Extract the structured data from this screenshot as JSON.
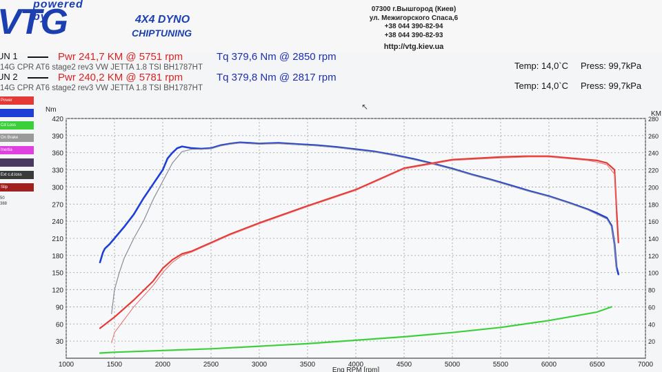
{
  "header": {
    "logo_top": "powered by",
    "logo_main": "VTG",
    "tagline1": "4X4 DYNO",
    "tagline2": "CHIPTUNING",
    "address": [
      "07300 г.Вышгород (Киев)",
      "ул. Межигорского Спаса,6",
      "+38 044 390-82-94",
      "+38 044 390-82-93"
    ],
    "url": "http://vtg.kiev.ua"
  },
  "runs": [
    {
      "label": "UN 1",
      "pwr": "Pwr  241,7 KM @ 5751 rpm",
      "tq": "Tq  379,6 Nm @ 2850 rpm",
      "desc": "14G CPR  AT6  stage2 rev3 VW JETTA 1.8 TSI BH1787HT",
      "temp": "Temp:  14,0`C",
      "press": "Press:  99,7kPa"
    },
    {
      "label": "UN 2",
      "pwr": "Pwr  240,2 KM @ 5781 rpm",
      "tq": "Tq  379,8 Nm @ 2817 rpm",
      "desc": "14G CPR  AT6  stage2 rev3 VW JETTA 1.8 TSI BH1787HT",
      "temp": "Temp:  14,0`C",
      "press": "Press:  99,7kPa"
    }
  ],
  "legend": [
    {
      "label": "Power",
      "color": "#e53935"
    },
    {
      "label": "",
      "color": "#1e3ed6"
    },
    {
      "label": "Cd Loss",
      "color": "#3ccf3c"
    },
    {
      "label": "On Brake",
      "color": "#9a9a9a"
    },
    {
      "label": "Inertia",
      "color": "#e040e0"
    },
    {
      "label": "",
      "color": "#4a3860"
    },
    {
      "label": "Ext c.d.loss",
      "color": "#3a3a3a"
    },
    {
      "label": "Slip",
      "color": "#a02020"
    }
  ],
  "legend_extra": [
    "50",
    "388"
  ],
  "chart_data": {
    "type": "line",
    "xlabel": "Eng RPM [rpm]",
    "ylabel_left": "Nm",
    "ylabel_right": "KM",
    "xlim": [
      1000,
      7000
    ],
    "ylim_left": [
      0,
      420
    ],
    "ylim_right": [
      0,
      280
    ],
    "x_ticks": [
      1000,
      1500,
      2000,
      2500,
      3000,
      3500,
      4000,
      4500,
      5000,
      5500,
      6000,
      6500,
      7000
    ],
    "y_left_ticks": [
      30,
      60,
      90,
      120,
      150,
      180,
      210,
      240,
      270,
      300,
      330,
      360,
      390,
      420
    ],
    "y_right_ticks": [
      20,
      40,
      60,
      80,
      100,
      120,
      140,
      160,
      180,
      200,
      220,
      240,
      260,
      280
    ],
    "grid": true,
    "series": [
      {
        "color": "#1e3ed6",
        "axis": "left",
        "width": 2.6,
        "x": [
          1350,
          1380,
          1400,
          1450,
          1500,
          1600,
          1700,
          1800,
          1900,
          2000,
          2050,
          2100,
          2150,
          2200,
          2300,
          2400,
          2500,
          2600,
          2700,
          2800,
          2900,
          3000,
          3200,
          3400,
          3600,
          3800,
          4000,
          4200,
          4400,
          4600,
          4800,
          5000,
          5200,
          5400,
          5600,
          5800,
          6000,
          6200,
          6400,
          6500,
          6600,
          6650,
          6680,
          6700,
          6720
        ],
        "y": [
          168,
          185,
          192,
          200,
          210,
          230,
          252,
          280,
          305,
          330,
          350,
          360,
          368,
          371,
          368,
          367,
          368,
          373,
          376,
          378,
          377,
          376,
          377,
          375,
          373,
          370,
          366,
          362,
          356,
          349,
          341,
          332,
          322,
          313,
          303,
          293,
          284,
          273,
          261,
          254,
          246,
          232,
          200,
          160,
          147
        ]
      },
      {
        "color": "#8a8a9a",
        "axis": "left",
        "width": 1.2,
        "x": [
          1470,
          1500,
          1550,
          1600,
          1700,
          1800,
          1900,
          2000,
          2100,
          2200,
          2300,
          2400,
          2500,
          2600,
          2700,
          2800,
          2900,
          3000,
          3200,
          3400,
          3600,
          3800,
          4000,
          4200,
          4400,
          4600,
          4800,
          5000,
          5200,
          5400,
          5600,
          5800,
          6000,
          6200,
          6400,
          6500,
          6600,
          6650,
          6680,
          6700
        ],
        "y": [
          78,
          120,
          150,
          175,
          210,
          240,
          278,
          310,
          342,
          362,
          366,
          366,
          367,
          372,
          375,
          377,
          376,
          375,
          376,
          374,
          372,
          369,
          365,
          361,
          355,
          348,
          340,
          331,
          321,
          312,
          302,
          292,
          283,
          272,
          260,
          252,
          244,
          230,
          200,
          155
        ]
      },
      {
        "color": "#e53935",
        "axis": "right",
        "width": 2.2,
        "x": [
          1350,
          1500,
          1700,
          1900,
          2000,
          2100,
          2200,
          2300,
          2400,
          2500,
          2700,
          3000,
          3500,
          4000,
          4500,
          5000,
          5500,
          5750,
          6000,
          6200,
          6400,
          6500,
          6600,
          6680,
          6700,
          6720
        ],
        "y": [
          35,
          48,
          68,
          90,
          105,
          115,
          122,
          125,
          130,
          135,
          145,
          158,
          178,
          197,
          222,
          232,
          235,
          236,
          236,
          234,
          232,
          231,
          228,
          220,
          175,
          135
        ]
      },
      {
        "color": "#e86a6a",
        "axis": "right",
        "width": 1.0,
        "x": [
          1470,
          1500,
          1700,
          1900,
          2000,
          2100,
          2200,
          2300,
          2400,
          2500,
          2700,
          3000,
          3500,
          4000,
          4500,
          5000,
          5500,
          5780,
          6000,
          6200,
          6400,
          6500,
          6600,
          6680,
          6700
        ],
        "y": [
          18,
          30,
          60,
          85,
          100,
          112,
          120,
          124,
          129,
          134,
          144,
          157,
          177,
          196,
          221,
          231,
          234,
          235,
          235,
          233,
          231,
          229,
          226,
          215,
          172
        ]
      },
      {
        "color": "#3ccf3c",
        "axis": "right",
        "width": 2.2,
        "x": [
          1350,
          1500,
          2000,
          2500,
          3000,
          3500,
          4000,
          4500,
          5000,
          5500,
          6000,
          6500,
          6650
        ],
        "y": [
          6,
          7,
          9,
          11,
          14,
          17,
          21,
          25,
          30,
          36,
          44,
          54,
          60
        ]
      }
    ]
  }
}
